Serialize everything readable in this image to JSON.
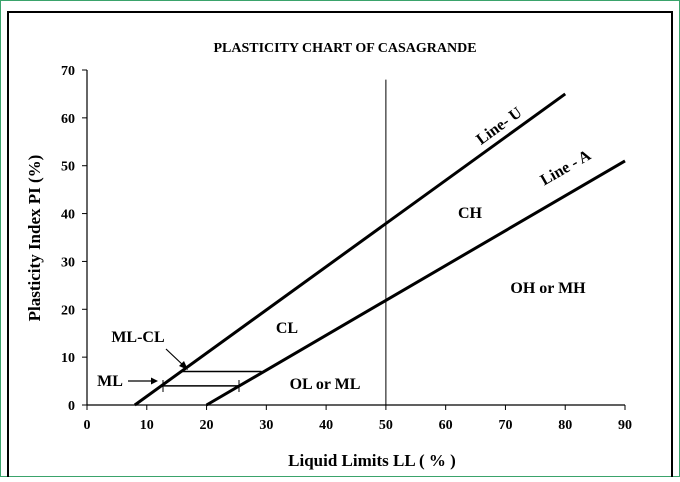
{
  "chart_data": {
    "type": "line",
    "title": "PLASTICITY CHART OF CASAGRANDE",
    "x_label": "Liquid Limits  LL ( % )",
    "y_label": "Plasticity Index PI  (%)",
    "xlim": [
      0,
      90
    ],
    "ylim": [
      0,
      70
    ],
    "xticks": [
      0,
      10,
      20,
      30,
      40,
      50,
      60,
      70,
      80,
      90
    ],
    "yticks": [
      0,
      10,
      20,
      30,
      40,
      50,
      60,
      70
    ],
    "series": [
      {
        "name": "Line- U",
        "color": "#000000",
        "x": [
          8,
          80
        ],
        "values": [
          0,
          65
        ]
      },
      {
        "name": "Line - A",
        "color": "#000000",
        "x": [
          20,
          90
        ],
        "values": [
          0,
          51
        ]
      },
      {
        "color": "#000000",
        "x": [
          50,
          50
        ],
        "values": [
          0,
          68
        ]
      },
      {
        "color": "#000000",
        "x": [
          15.8,
          29.2
        ],
        "values": [
          7,
          7
        ]
      },
      {
        "color": "#000000",
        "x": [
          12.6,
          25.5
        ],
        "values": [
          4,
          4
        ]
      }
    ],
    "annotations": [
      "CH",
      "CL",
      "OH or MH",
      "OL or ML",
      "ML-CL",
      "ML"
    ]
  }
}
